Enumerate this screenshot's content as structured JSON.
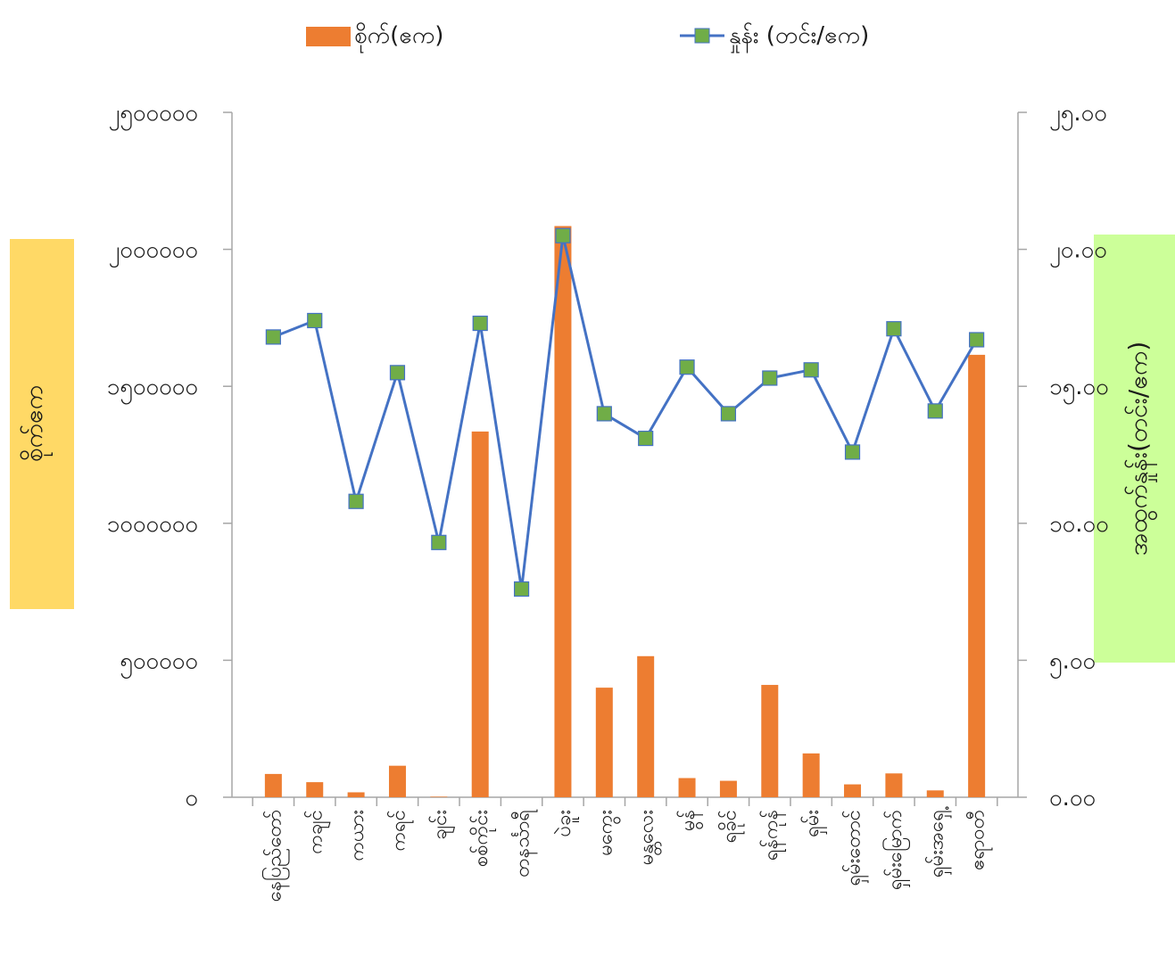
{
  "chart_data": {
    "type": "bar",
    "title": "",
    "categories": [
      "နေပြည်တော်",
      "ကချင်",
      "ကယား",
      "ကရင်",
      "ချင်း",
      "စစ်ကိုင်း",
      "တနင်္သာရီ",
      "ပဲခူး",
      "မကွေး",
      "မန္တလေး",
      "မွန်",
      "ရခိုင်",
      "ရန်ကုန်",
      "ရှမ်း",
      "ရှမ်းတောင်",
      "ရှမ်းမြောက်",
      "ရှမ်းအရှေ့",
      "ဧရာဝတီ"
    ],
    "series": [
      {
        "name": "စိုက်(ဧက)",
        "type": "bar",
        "axis": "left",
        "color": "#ED7D31",
        "values": [
          85000,
          55000,
          18000,
          115000,
          2000,
          1335000,
          0,
          2085000,
          400000,
          515000,
          70000,
          60000,
          410000,
          160000,
          47000,
          87000,
          25000,
          1615000
        ]
      },
      {
        "name": "နှုန်း (တင်း/ဧက)",
        "type": "line",
        "axis": "right",
        "color": "#4472C4",
        "marker_color": "#70AD47",
        "values": [
          16.8,
          17.4,
          10.8,
          15.5,
          9.3,
          17.3,
          7.6,
          20.5,
          14.0,
          13.1,
          15.7,
          14.0,
          15.3,
          15.6,
          12.6,
          17.1,
          14.1,
          16.7
        ]
      }
    ],
    "y_left": {
      "label": "စိုက်ဧက",
      "min": 0,
      "max": 2500000,
      "ticks": [
        0,
        500000,
        1000000,
        1500000,
        2000000,
        2500000
      ],
      "tick_labels": [
        "၀",
        "၅၀၀၀၀၀",
        "၁၀၀၀၀၀၀",
        "၁၅၀၀၀၀၀",
        "၂၀၀၀၀၀၀",
        "၂၅၀၀၀၀၀"
      ]
    },
    "y_right": {
      "label": "အထွက်နှုန်း(တင်း/ဧက)",
      "min": 0,
      "max": 25,
      "ticks": [
        0,
        5,
        10,
        15,
        20,
        25
      ],
      "tick_labels": [
        "၀.၀၀",
        "၅.၀၀",
        "၁၀.၀၀",
        "၁၅.၀၀",
        "၂၀.၀၀",
        "၂၅.၀၀"
      ]
    },
    "legend": {
      "position": "top",
      "entries": [
        "စိုက်(ဧက)",
        "နှုန်း (တင်း/ဧက)"
      ]
    },
    "grid": false,
    "axis_title_colors": {
      "left": "#FFD966",
      "right": "#CCFF99"
    }
  }
}
